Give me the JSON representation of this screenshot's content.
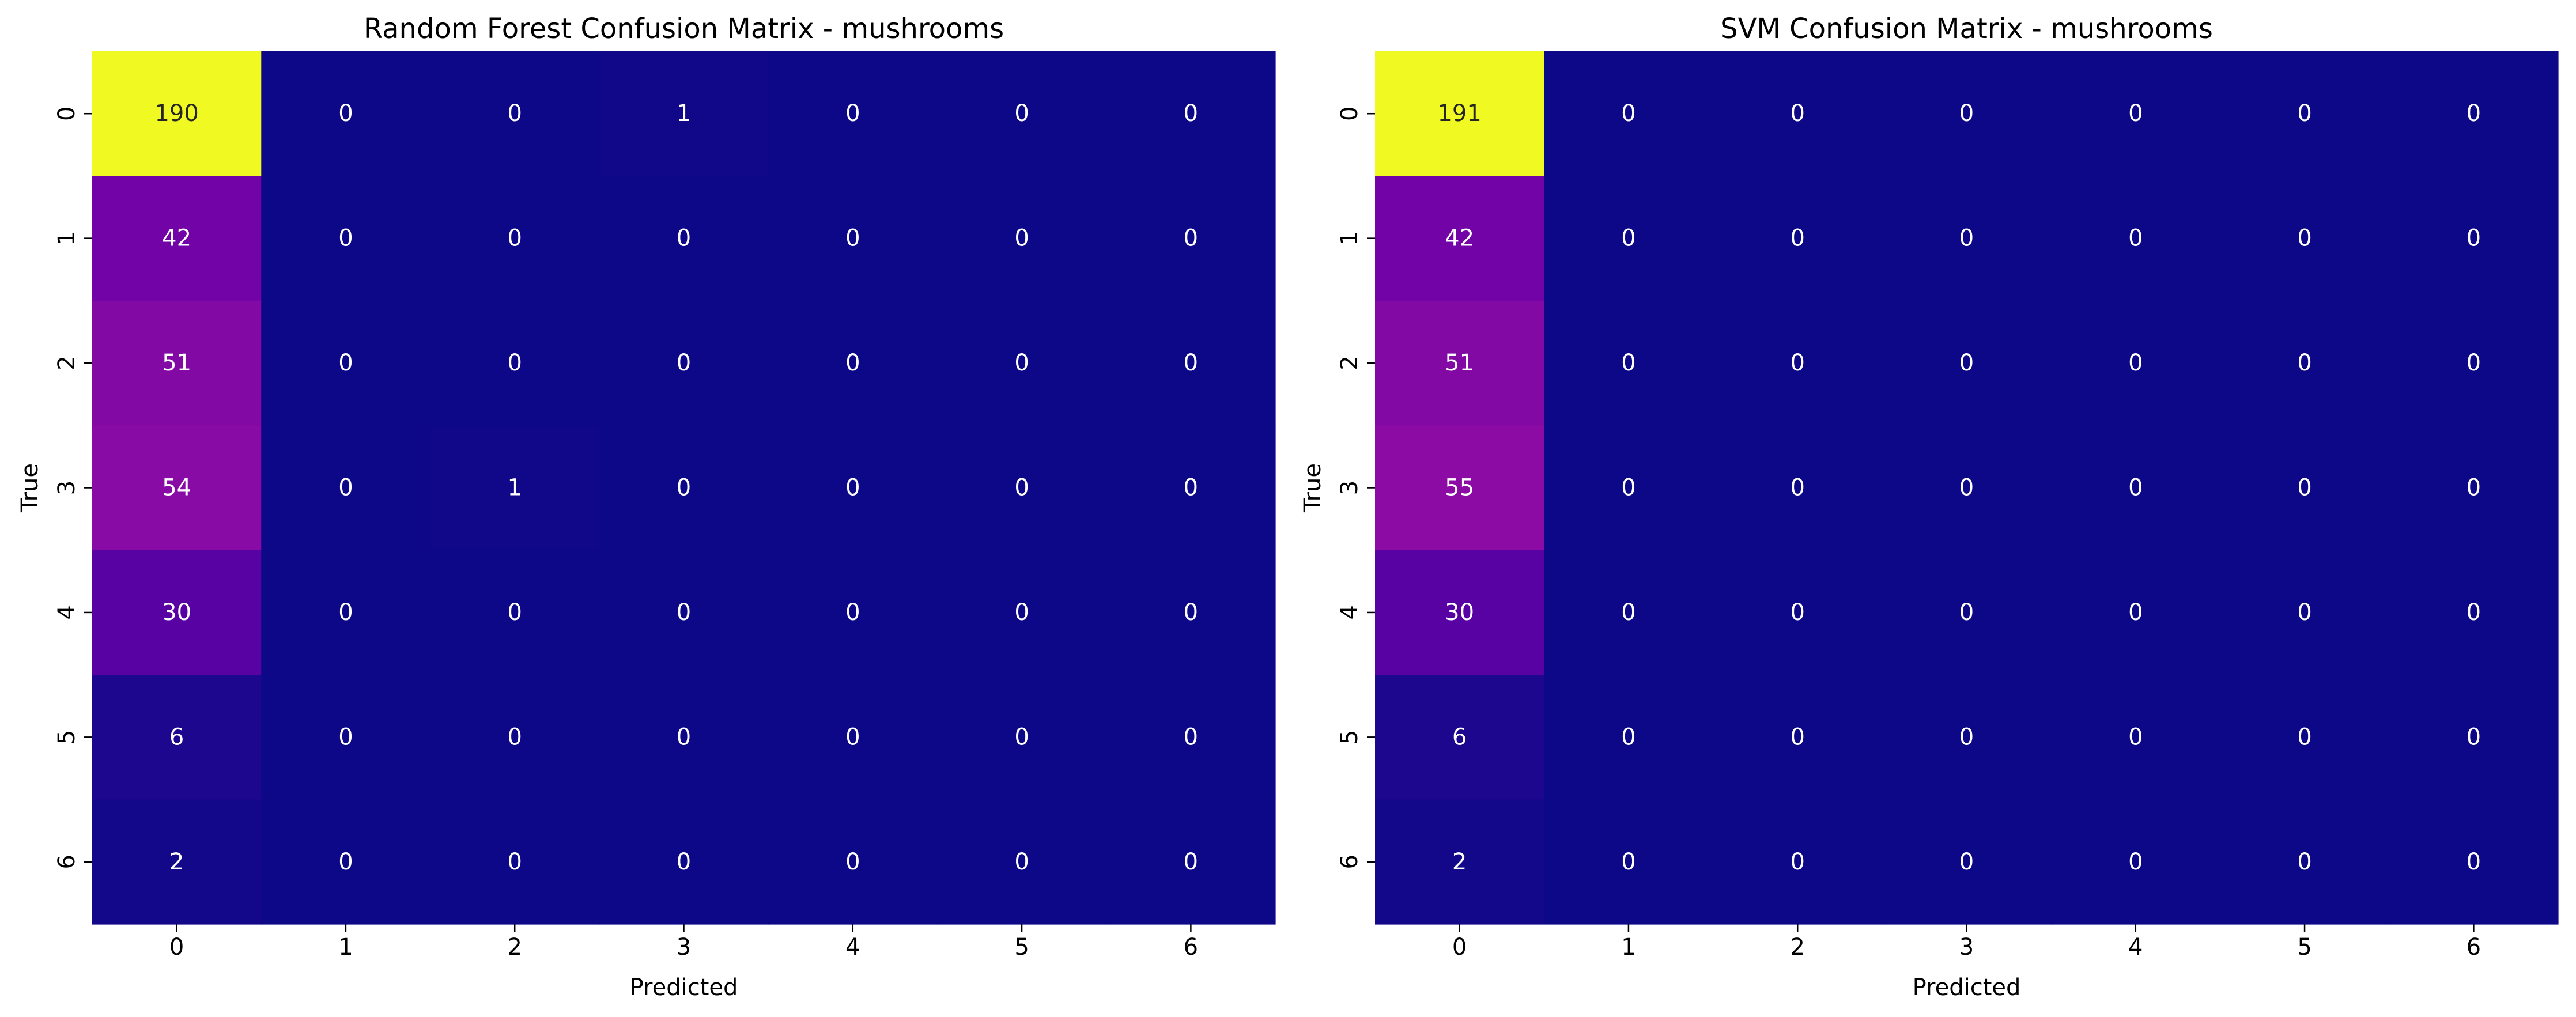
{
  "chart_data": [
    {
      "type": "heatmap",
      "title": "Random Forest Confusion Matrix - mushrooms",
      "xlabel": "Predicted",
      "ylabel": "True",
      "x_categories": [
        "0",
        "1",
        "2",
        "3",
        "4",
        "5",
        "6"
      ],
      "y_categories": [
        "0",
        "1",
        "2",
        "3",
        "4",
        "5",
        "6"
      ],
      "colormap": "plasma",
      "colorbar": false,
      "values": [
        [
          190,
          0,
          0,
          1,
          0,
          0,
          0
        ],
        [
          42,
          0,
          0,
          0,
          0,
          0,
          0
        ],
        [
          51,
          0,
          0,
          0,
          0,
          0,
          0
        ],
        [
          54,
          0,
          1,
          0,
          0,
          0,
          0
        ],
        [
          30,
          0,
          0,
          0,
          0,
          0,
          0
        ],
        [
          6,
          0,
          0,
          0,
          0,
          0,
          0
        ],
        [
          2,
          0,
          0,
          0,
          0,
          0,
          0
        ]
      ]
    },
    {
      "type": "heatmap",
      "title": "SVM Confusion Matrix - mushrooms",
      "xlabel": "Predicted",
      "ylabel": "True",
      "x_categories": [
        "0",
        "1",
        "2",
        "3",
        "4",
        "5",
        "6"
      ],
      "y_categories": [
        "0",
        "1",
        "2",
        "3",
        "4",
        "5",
        "6"
      ],
      "colormap": "plasma",
      "colorbar": false,
      "values": [
        [
          191,
          0,
          0,
          0,
          0,
          0,
          0
        ],
        [
          42,
          0,
          0,
          0,
          0,
          0,
          0
        ],
        [
          51,
          0,
          0,
          0,
          0,
          0,
          0
        ],
        [
          55,
          0,
          0,
          0,
          0,
          0,
          0
        ],
        [
          30,
          0,
          0,
          0,
          0,
          0,
          0
        ],
        [
          6,
          0,
          0,
          0,
          0,
          0,
          0
        ],
        [
          2,
          0,
          0,
          0,
          0,
          0,
          0
        ]
      ]
    }
  ]
}
